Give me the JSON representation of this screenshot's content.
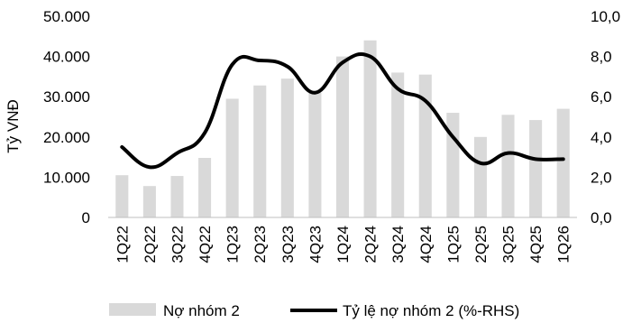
{
  "chart_data": {
    "type": "bar",
    "categories": [
      "1Q22",
      "2Q22",
      "3Q22",
      "4Q22",
      "1Q23",
      "2Q23",
      "3Q23",
      "4Q23",
      "1Q24",
      "2Q24",
      "3Q24",
      "4Q24",
      "1Q25",
      "2Q25",
      "3Q25",
      "4Q25",
      "1Q26"
    ],
    "series": [
      {
        "name": "Nợ nhóm 2",
        "type": "bar",
        "axis": "left",
        "color": "#d9d9d9",
        "values": [
          10500,
          7800,
          10300,
          14800,
          29500,
          32800,
          34500,
          31000,
          40000,
          44000,
          36000,
          35500,
          26000,
          20000,
          25500,
          24200,
          27000
        ]
      },
      {
        "name": "Tỷ lệ nợ nhóm 2 (%-RHS)",
        "type": "line",
        "axis": "right",
        "color": "#000000",
        "values": [
          3.5,
          2.5,
          3.2,
          4.2,
          7.6,
          7.8,
          7.5,
          6.2,
          7.7,
          8.0,
          6.4,
          5.8,
          4.0,
          2.7,
          3.2,
          2.9,
          2.9
        ]
      }
    ],
    "title": "",
    "xlabel": "",
    "ylabel": "Tỷ VNĐ",
    "ylim": [
      0,
      50000
    ],
    "y2lim": [
      0,
      10
    ],
    "y_ticks": [
      "0",
      "10.000",
      "20.000",
      "30.000",
      "40.000",
      "50.000"
    ],
    "y2_ticks": [
      "0,0",
      "2,0",
      "4,0",
      "6,0",
      "8,0",
      "10,0"
    ],
    "grid": false,
    "legend": "bottom"
  }
}
